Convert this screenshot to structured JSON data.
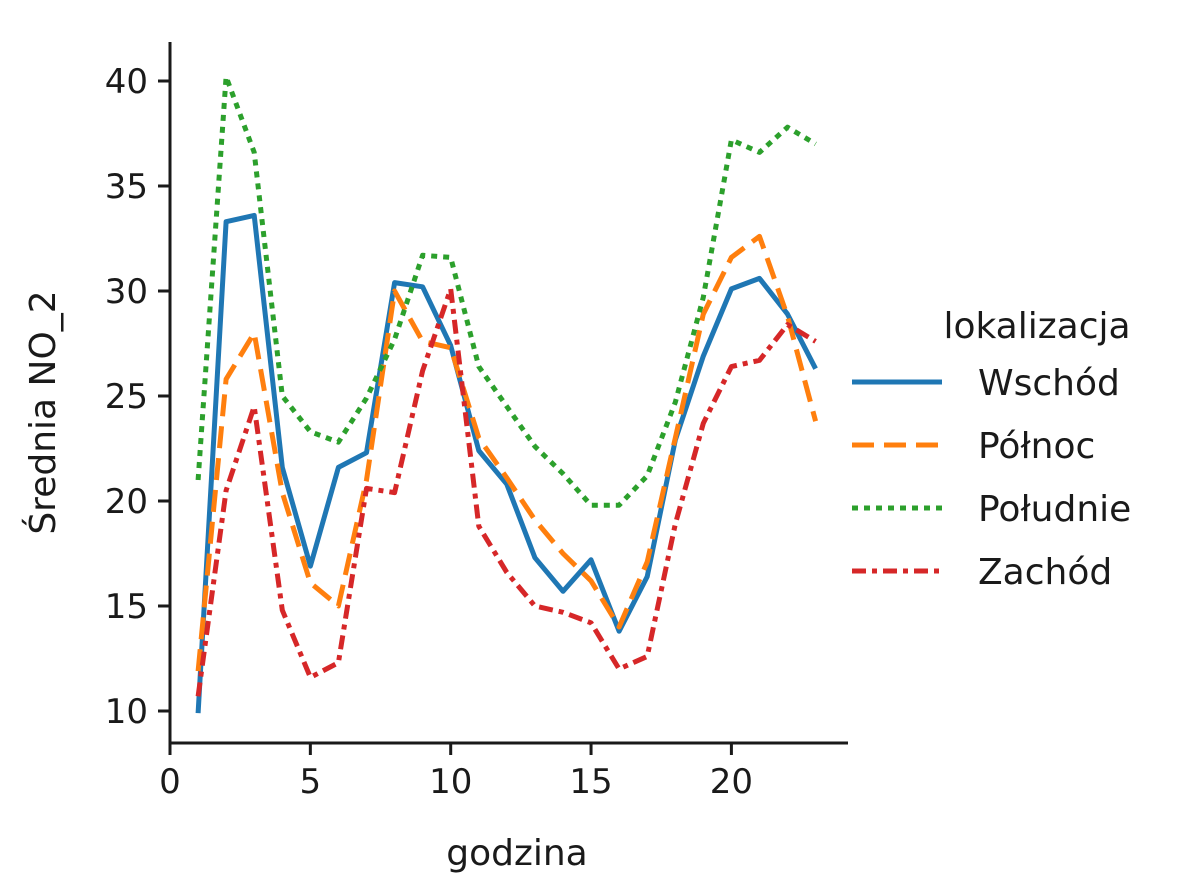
{
  "chart_data": {
    "type": "line",
    "title": "",
    "xlabel": "godzina",
    "ylabel": "Średnia NO_2",
    "xlim": [
      0,
      24
    ],
    "ylim": [
      8.5,
      42
    ],
    "xticks": [
      0,
      5,
      10,
      15,
      20
    ],
    "yticks": [
      10,
      15,
      20,
      25,
      30,
      35,
      40
    ],
    "grid": false,
    "legend": {
      "title": "lokalizacja",
      "placement": "right"
    },
    "x": [
      1,
      2,
      3,
      4,
      5,
      6,
      7,
      8,
      9,
      10,
      11,
      12,
      13,
      14,
      15,
      16,
      17,
      18,
      19,
      20,
      21,
      22,
      23
    ],
    "series": [
      {
        "name": "Wschód",
        "color": "#1f77b4",
        "dash": "solid",
        "values": [
          9.9,
          33.3,
          33.6,
          21.6,
          16.9,
          21.6,
          22.3,
          30.4,
          30.2,
          27.4,
          22.4,
          20.8,
          17.3,
          15.7,
          17.2,
          13.8,
          16.4,
          22.9,
          26.9,
          30.1,
          30.6,
          28.9,
          26.3
        ]
      },
      {
        "name": "Północ",
        "color": "#ff7f0e",
        "dash": "dashed",
        "values": [
          11.9,
          25.8,
          28.0,
          20.4,
          16.1,
          15.0,
          21.0,
          30.0,
          27.6,
          27.3,
          23.0,
          21.1,
          19.1,
          17.5,
          16.2,
          14.0,
          17.1,
          23.0,
          28.9,
          31.6,
          32.6,
          28.8,
          23.8
        ]
      },
      {
        "name": "Południe",
        "color": "#2ca02c",
        "dash": "dotted",
        "values": [
          21.0,
          40.2,
          36.6,
          25.0,
          23.3,
          22.8,
          24.9,
          27.7,
          31.7,
          31.6,
          26.4,
          24.5,
          22.6,
          21.3,
          19.8,
          19.8,
          21.2,
          24.7,
          29.7,
          37.2,
          36.6,
          37.8,
          37.0
        ]
      },
      {
        "name": "Zachód",
        "color": "#d62728",
        "dash": "dashdot",
        "values": [
          10.7,
          20.5,
          24.5,
          14.8,
          11.6,
          12.3,
          20.6,
          20.4,
          26.2,
          30.1,
          18.8,
          16.6,
          15.0,
          14.7,
          14.2,
          12.0,
          12.6,
          18.9,
          23.7,
          26.4,
          26.7,
          28.4,
          27.6
        ]
      }
    ]
  }
}
